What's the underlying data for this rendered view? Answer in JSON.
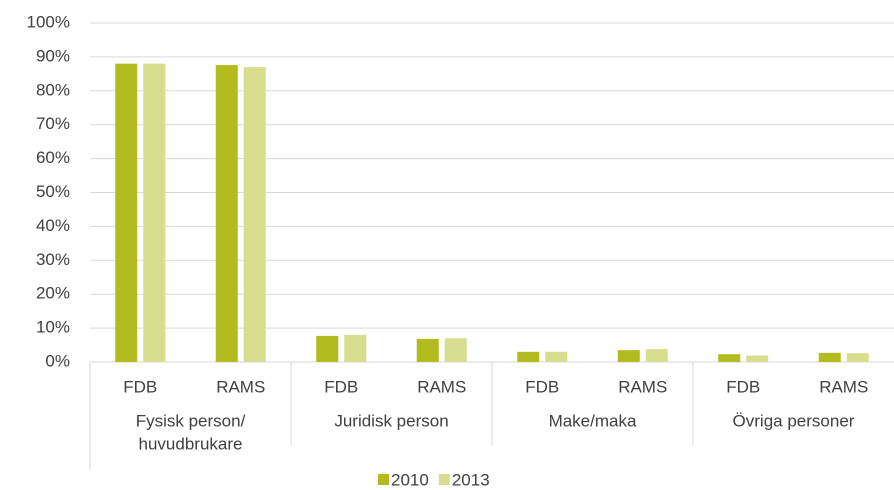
{
  "chart_data": {
    "type": "bar",
    "categories": [
      "FDB",
      "RAMS",
      "FDB",
      "RAMS",
      "FDB",
      "RAMS",
      "FDB",
      "RAMS"
    ],
    "groups": [
      [
        "Fysisk person/",
        "huvudbrukare"
      ],
      [
        "Juridisk person"
      ],
      [
        "Make/maka"
      ],
      [
        "Övriga personer"
      ]
    ],
    "series": [
      {
        "name": "2010",
        "color": "#b3bc1e",
        "values": [
          88,
          87.6,
          7.7,
          6.8,
          3,
          3.5,
          2.3,
          2.7
        ]
      },
      {
        "name": "2013",
        "color": "#d7de8e",
        "values": [
          88,
          87,
          8,
          7,
          3,
          3.8,
          1.9,
          2.6
        ]
      }
    ],
    "ylim": [
      0,
      100
    ],
    "yticks": [
      {
        "value": 0,
        "label": "0%"
      },
      {
        "value": 10,
        "label": "10%"
      },
      {
        "value": 20,
        "label": "20%"
      },
      {
        "value": 30,
        "label": "30%"
      },
      {
        "value": 40,
        "label": "40%"
      },
      {
        "value": 50,
        "label": "50%"
      },
      {
        "value": 60,
        "label": "60%"
      },
      {
        "value": 70,
        "label": "70%"
      },
      {
        "value": 80,
        "label": "80%"
      },
      {
        "value": 90,
        "label": "90%"
      },
      {
        "value": 100,
        "label": "100%"
      }
    ],
    "grid": true,
    "legend": "bottom"
  }
}
